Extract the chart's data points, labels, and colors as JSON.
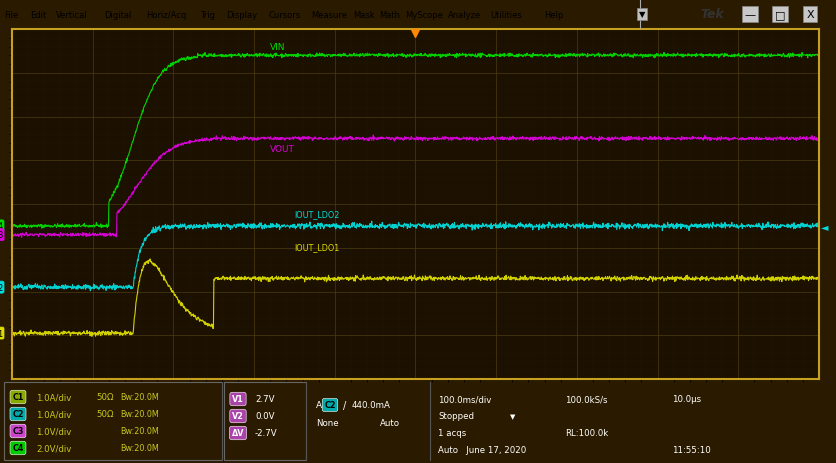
{
  "bg_color": "#2a1a00",
  "plot_bg_color": "#1c1000",
  "grid_color": "#4a3a10",
  "border_color": "#c8a020",
  "fig_width": 8.37,
  "fig_height": 4.64,
  "menu_bg": "#d0d0d0",
  "vin_color": "#00dd00",
  "vout_color": "#dd00dd",
  "iout_ldo2_color": "#00dddd",
  "iout_ldo1_color": "#dddd00",
  "label_vin": "VIN",
  "label_vout": "VOUT",
  "label_iout_ldo2": "IOUT_LDO2",
  "label_iout_ldo1": "IOUT_LDO1",
  "bottom_bar_color": "#1e1e1e",
  "bottom_text_color": "#c8c820",
  "status_text_color": "#ffffff",
  "trigger_color": "#ff8800",
  "menu_items": [
    "File",
    "Edit",
    "Vertical",
    "Digital",
    "Horiz/Acq",
    "Trig",
    "Display",
    "Cursors",
    "Measure",
    "Mask",
    "Math",
    "MyScope",
    "Analyze",
    "Utilities",
    "Help"
  ],
  "chan_info": [
    [
      "C1",
      "#88aa00",
      "1.0A/div",
      "50Ω",
      "Bw:20.0M"
    ],
    [
      "C2",
      "#00aaaa",
      "1.0A/div",
      "50Ω",
      "Bw:20.0M"
    ],
    [
      "C3",
      "#cc44cc",
      "1.0V/div",
      "",
      "Bw:20.0M"
    ],
    [
      "C4",
      "#00cc00",
      "2.0V/div",
      "",
      "Bw:20.0M"
    ]
  ],
  "vmeas": [
    [
      "V1",
      "2.7V"
    ],
    [
      "V2",
      "0.0V"
    ],
    [
      "ΔV",
      "-2.7V"
    ]
  ],
  "timing_line1": [
    "100.0ms/div",
    "100.0kS/s",
    "10.0μs"
  ],
  "timing_line2": [
    "Stopped",
    "",
    ""
  ],
  "timing_line3": [
    "1 acqs",
    "RL:100.0k",
    ""
  ],
  "timing_line4": [
    "Auto   June 17, 2020",
    "",
    "11:55:10"
  ],
  "trig_text": [
    "A",
    "C2",
    "/",
    "440.0mA",
    "None",
    "Auto"
  ]
}
